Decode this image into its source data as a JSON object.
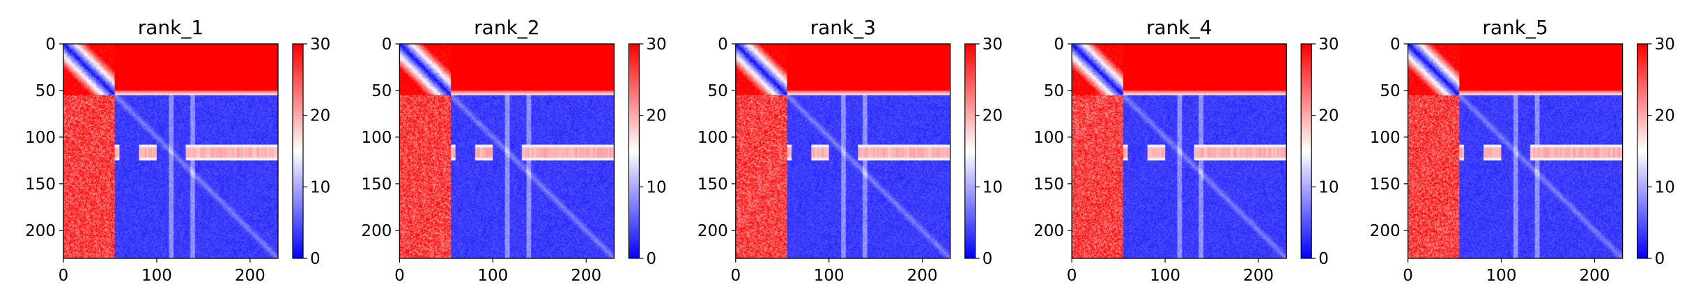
{
  "chart_data": [
    {
      "type": "heatmap",
      "title": "rank_1",
      "xlim": [
        0,
        230
      ],
      "ylim": [
        230,
        0
      ],
      "xticks": [
        0,
        100,
        200
      ],
      "yticks": [
        0,
        50,
        100,
        150,
        200
      ],
      "colorbar": {
        "min": 0,
        "max": 30,
        "ticks": [
          0,
          10,
          20,
          30
        ],
        "colormap": "bwr",
        "colors": [
          "#0000ff",
          "#ffffff",
          "#ff0000"
        ]
      },
      "structure": {
        "n": 230,
        "boundary": 55,
        "band_rows": [
          108,
          124
        ],
        "band_gaps": [
          [
            60,
            80
          ],
          [
            100,
            130
          ]
        ],
        "vertical_lines": [
          115,
          138
        ]
      }
    },
    {
      "type": "heatmap",
      "title": "rank_2",
      "xlim": [
        0,
        230
      ],
      "ylim": [
        230,
        0
      ],
      "xticks": [
        0,
        100,
        200
      ],
      "yticks": [
        0,
        50,
        100,
        150,
        200
      ],
      "colorbar": {
        "min": 0,
        "max": 30,
        "ticks": [
          0,
          10,
          20,
          30
        ],
        "colormap": "bwr",
        "colors": [
          "#0000ff",
          "#ffffff",
          "#ff0000"
        ]
      },
      "structure": {
        "n": 230,
        "boundary": 55,
        "band_rows": [
          108,
          124
        ],
        "band_gaps": [
          [
            60,
            80
          ],
          [
            100,
            130
          ]
        ],
        "vertical_lines": [
          115,
          138
        ]
      }
    },
    {
      "type": "heatmap",
      "title": "rank_3",
      "xlim": [
        0,
        230
      ],
      "ylim": [
        230,
        0
      ],
      "xticks": [
        0,
        100,
        200
      ],
      "yticks": [
        0,
        50,
        100,
        150,
        200
      ],
      "colorbar": {
        "min": 0,
        "max": 30,
        "ticks": [
          0,
          10,
          20,
          30
        ],
        "colormap": "bwr",
        "colors": [
          "#0000ff",
          "#ffffff",
          "#ff0000"
        ]
      },
      "structure": {
        "n": 230,
        "boundary": 55,
        "band_rows": [
          108,
          124
        ],
        "band_gaps": [
          [
            60,
            80
          ],
          [
            100,
            130
          ]
        ],
        "vertical_lines": [
          115,
          138
        ]
      }
    },
    {
      "type": "heatmap",
      "title": "rank_4",
      "xlim": [
        0,
        230
      ],
      "ylim": [
        230,
        0
      ],
      "xticks": [
        0,
        100,
        200
      ],
      "yticks": [
        0,
        50,
        100,
        150,
        200
      ],
      "colorbar": {
        "min": 0,
        "max": 30,
        "ticks": [
          0,
          10,
          20,
          30
        ],
        "colormap": "bwr",
        "colors": [
          "#0000ff",
          "#ffffff",
          "#ff0000"
        ]
      },
      "structure": {
        "n": 230,
        "boundary": 55,
        "band_rows": [
          108,
          124
        ],
        "band_gaps": [
          [
            60,
            80
          ],
          [
            100,
            130
          ]
        ],
        "vertical_lines": [
          115,
          138
        ]
      }
    },
    {
      "type": "heatmap",
      "title": "rank_5",
      "xlim": [
        0,
        230
      ],
      "ylim": [
        230,
        0
      ],
      "xticks": [
        0,
        100,
        200
      ],
      "yticks": [
        0,
        50,
        100,
        150,
        200
      ],
      "colorbar": {
        "min": 0,
        "max": 30,
        "ticks": [
          0,
          10,
          20,
          30
        ],
        "colormap": "bwr",
        "colors": [
          "#0000ff",
          "#ffffff",
          "#ff0000"
        ]
      },
      "structure": {
        "n": 230,
        "boundary": 55,
        "band_rows": [
          108,
          124
        ],
        "band_gaps": [
          [
            60,
            80
          ],
          [
            100,
            130
          ]
        ],
        "vertical_lines": [
          115,
          138
        ]
      }
    }
  ]
}
